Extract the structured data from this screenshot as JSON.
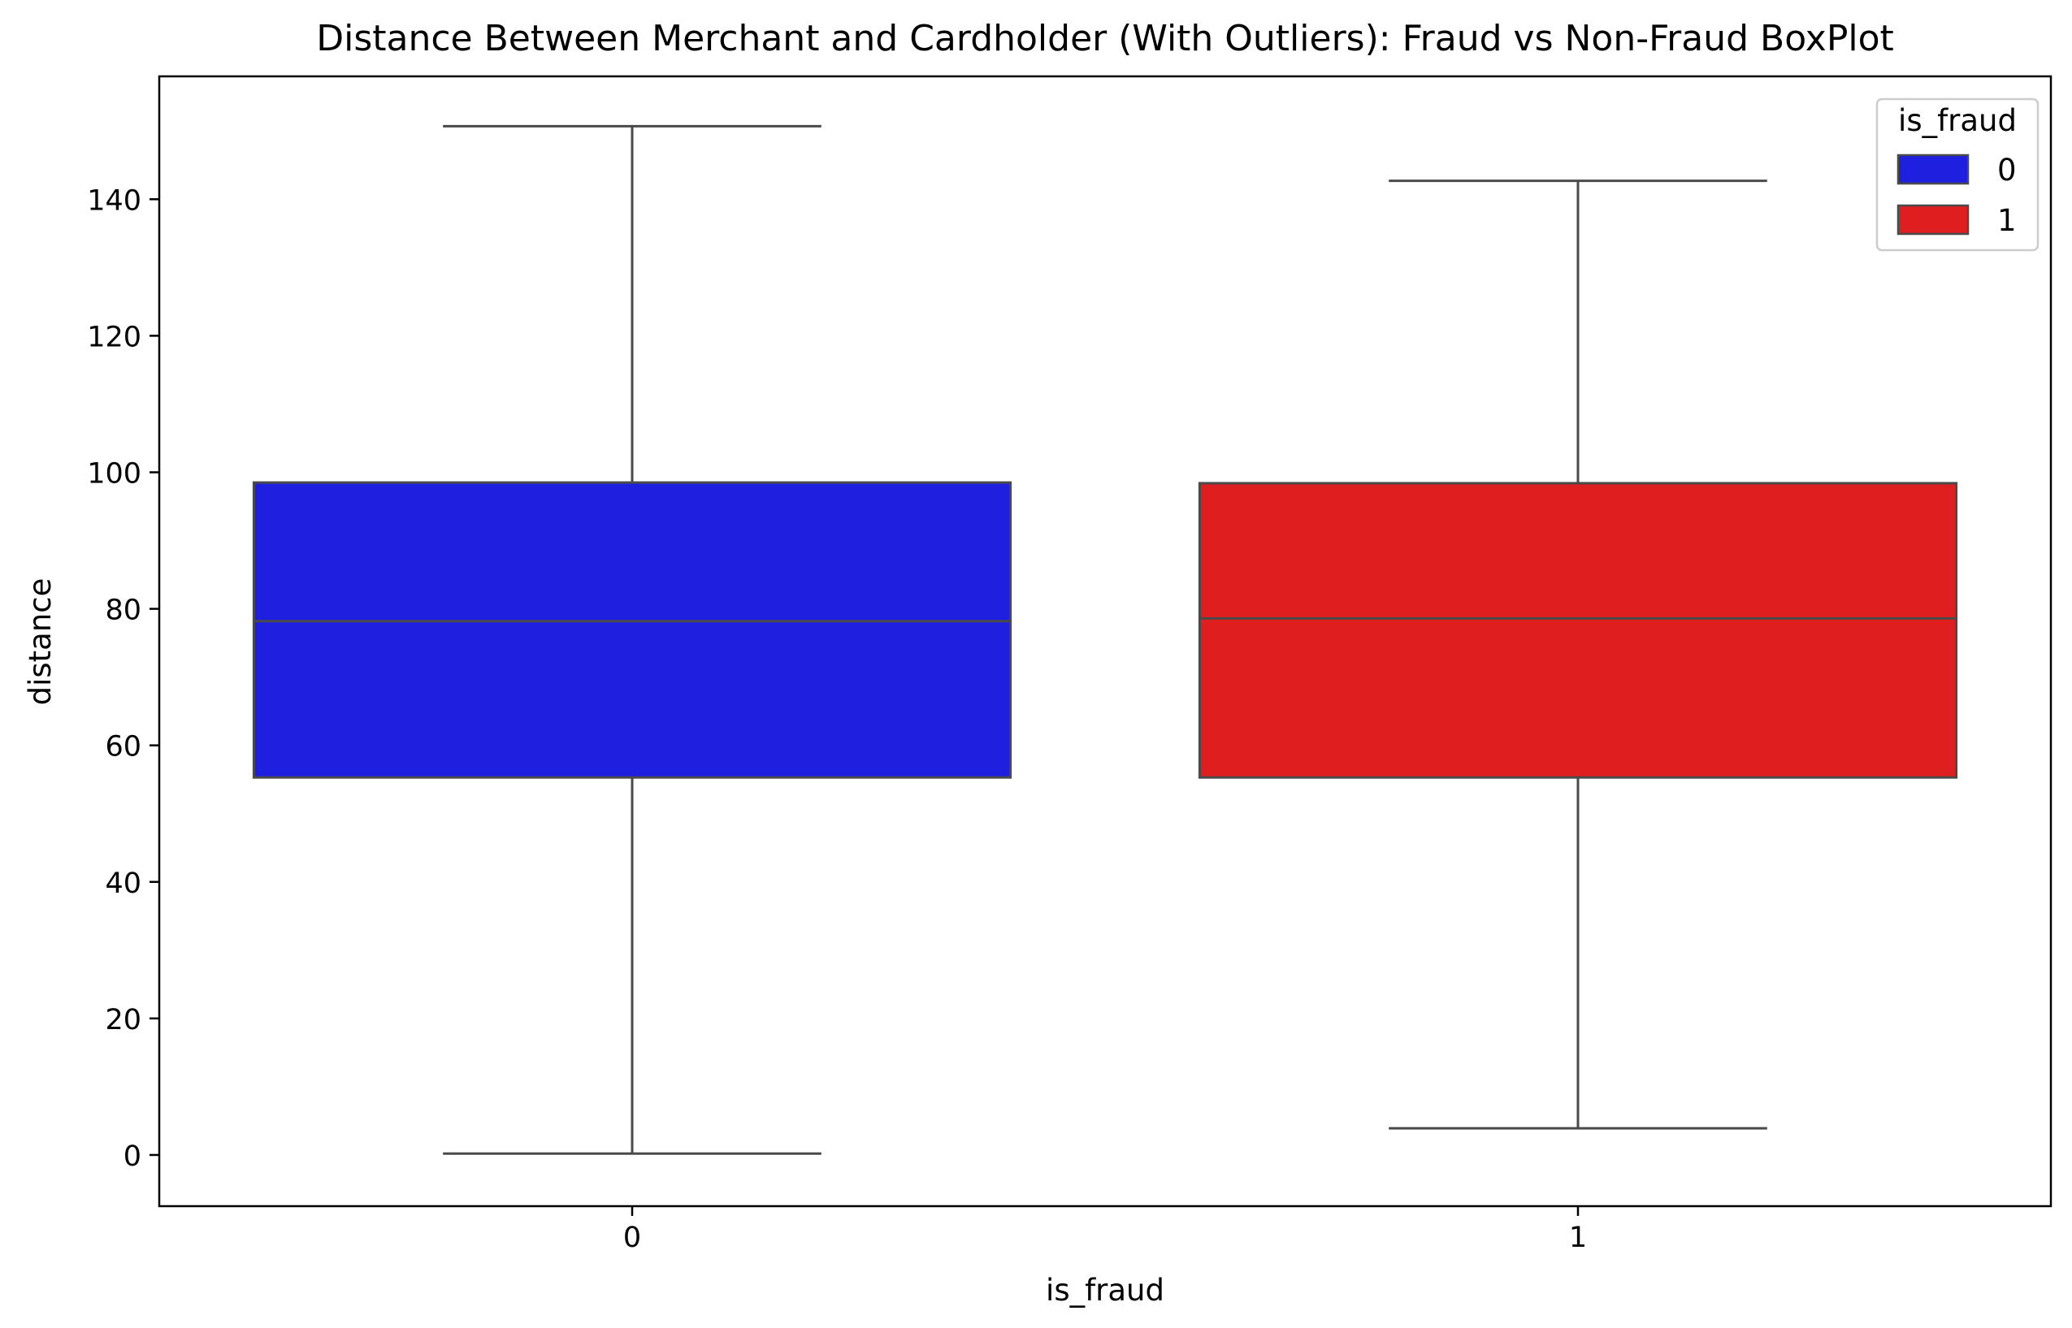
{
  "chart_data": {
    "type": "box",
    "title": "Distance Between Merchant and Cardholder (With Outliers): Fraud vs Non-Fraud BoxPlot",
    "xlabel": "is_fraud",
    "ylabel": "distance",
    "categories": [
      "0",
      "1"
    ],
    "ylim": [
      -7.5,
      158
    ],
    "yticks": [
      0,
      20,
      40,
      60,
      80,
      100,
      120,
      140
    ],
    "grid": false,
    "boxes": [
      {
        "category": "0",
        "whisker_low": 0.2,
        "q1": 55.3,
        "median": 78.2,
        "q3": 98.5,
        "whisker_high": 150.7,
        "color": "#1f1fe0"
      },
      {
        "category": "1",
        "whisker_low": 3.9,
        "q1": 55.3,
        "median": 78.6,
        "q3": 98.4,
        "whisker_high": 142.7,
        "color": "#df1f1f"
      }
    ],
    "legend": {
      "title": "is_fraud",
      "placement": "top-right",
      "entries": [
        {
          "label": "0",
          "color": "#1f1fe0"
        },
        {
          "label": "1",
          "color": "#df1f1f"
        }
      ]
    }
  }
}
